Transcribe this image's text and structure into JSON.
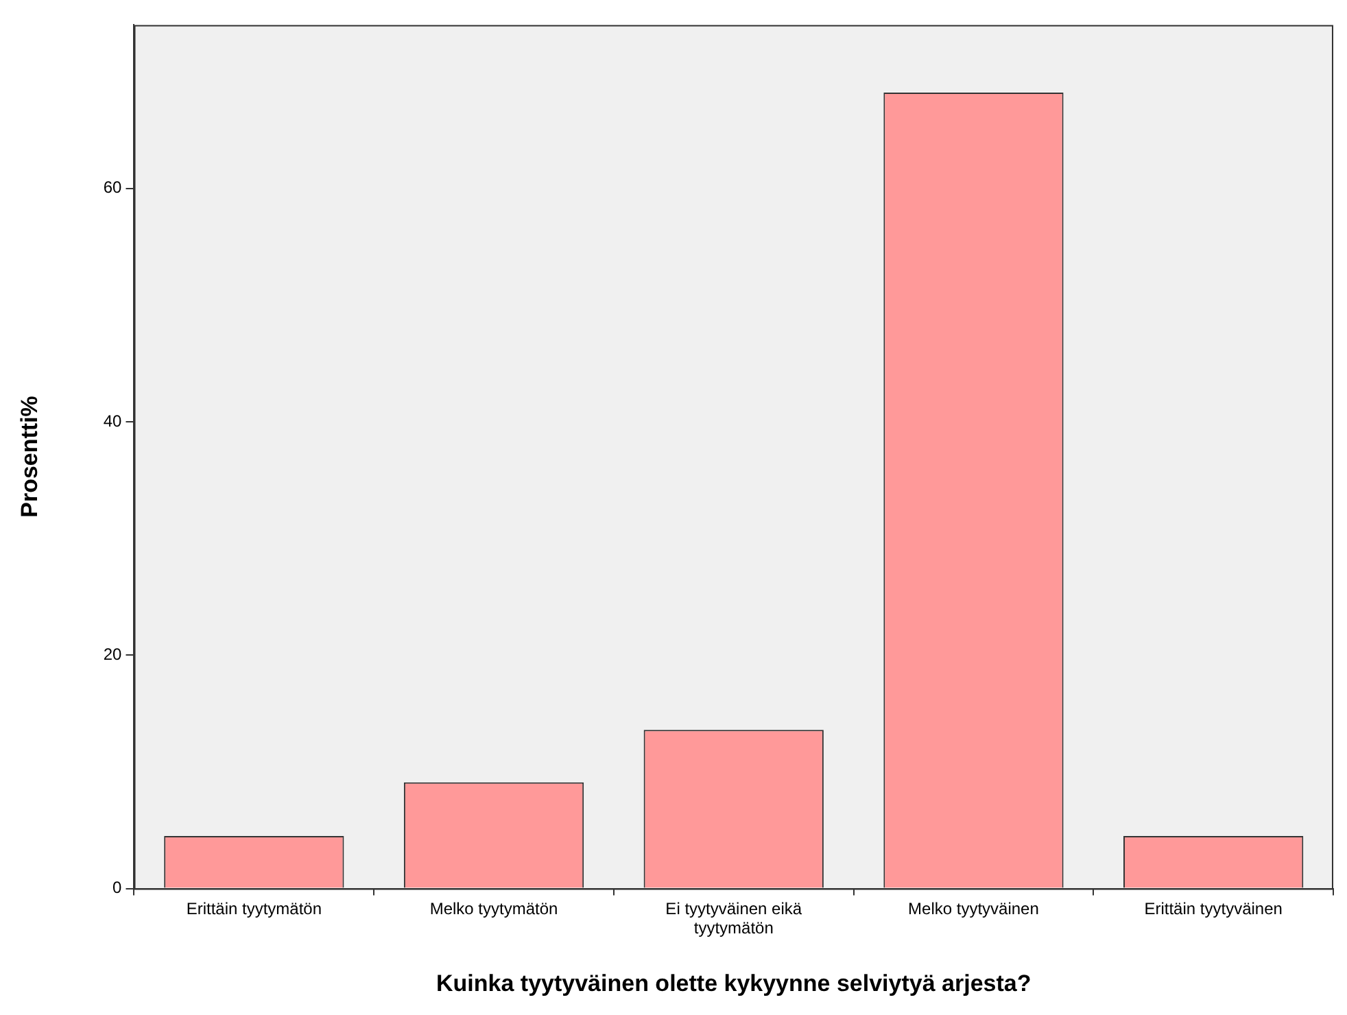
{
  "chart_data": {
    "type": "bar",
    "xlabel": "Kuinka tyytyväinen olette kykyynne selviytyä arjesta?",
    "ylabel": "Prosentti%",
    "categories": [
      "Erittäin tyytymätön",
      "Melko tyytymätön",
      "Ei tyytyväinen eikä tyytymätön",
      "Melko tyytyväinen",
      "Erittäin tyytyväinen"
    ],
    "values": [
      4.5,
      9.1,
      13.6,
      68.2,
      4.5
    ],
    "color": "#ff9999",
    "ylim": [
      0,
      74
    ],
    "yticks": [
      0,
      20,
      40,
      60
    ],
    "grid": false,
    "legend": false
  }
}
